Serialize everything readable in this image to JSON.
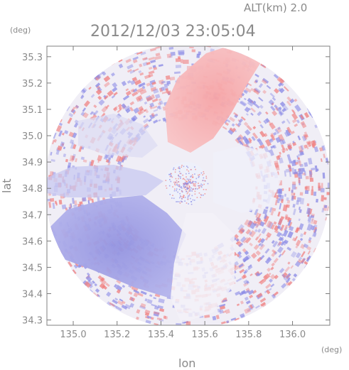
{
  "header": {
    "altitude": "ALT(km) 2.0",
    "timestamp": "2012/12/03 23:05:04"
  },
  "axes": {
    "x_unit": "(deg)",
    "y_unit": "(deg)",
    "x_label": "lon",
    "y_label": "lat"
  },
  "chart_data": {
    "type": "heatmap",
    "x_ticks": [
      "135.0",
      "135.2",
      "135.4",
      "135.6",
      "135.8",
      "136.0"
    ],
    "y_ticks": [
      "35.3",
      "35.2",
      "35.1",
      "35.0",
      "34.9",
      "34.8",
      "34.7",
      "34.6",
      "34.5",
      "34.4",
      "34.3"
    ],
    "xlim": [
      134.88,
      136.17
    ],
    "ylim": [
      34.28,
      35.34
    ],
    "colors": {
      "positive": "#f08080",
      "negative": "#8c8ce6",
      "near_zero": "#f2f2fa"
    }
  }
}
